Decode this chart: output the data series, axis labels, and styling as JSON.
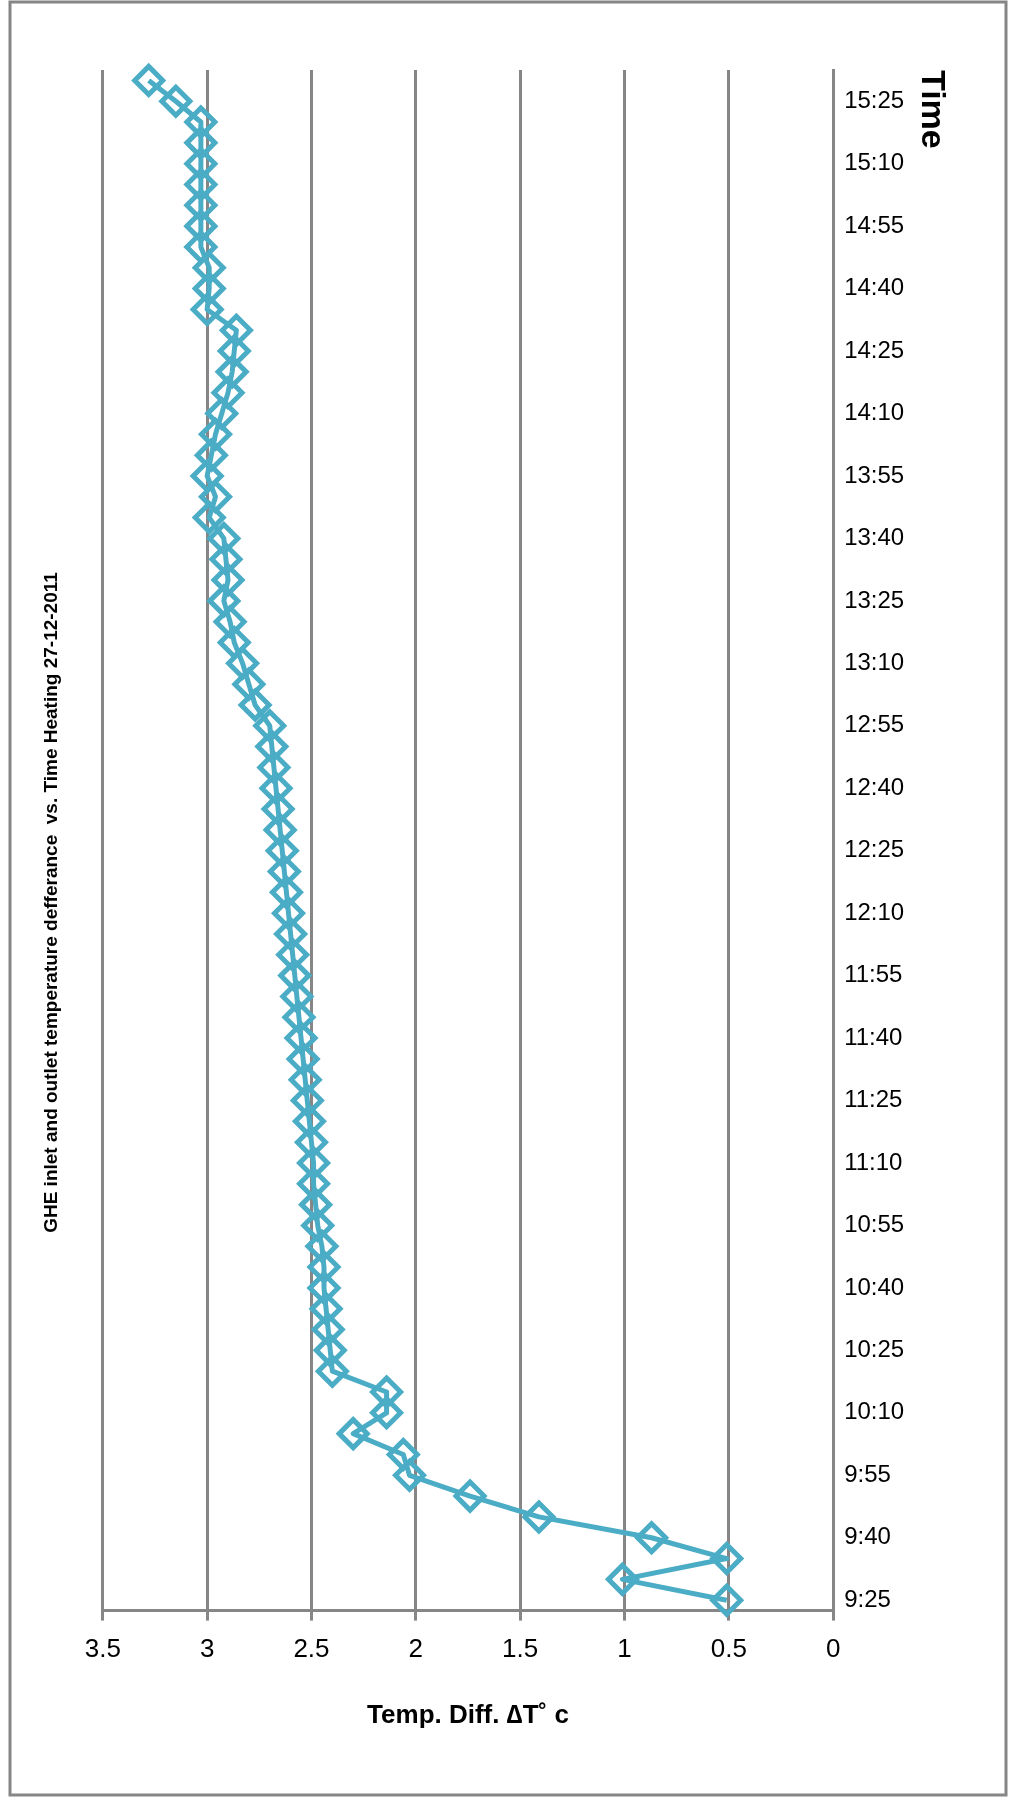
{
  "chart_data": {
    "type": "line",
    "orientation": "horizontal",
    "title": "GHE inlet and outlet temperature defferance  vs. Time Heating 27-12-2011",
    "xlabel": "Temp. Diff. ∆T˚ c",
    "ylabel": "Time",
    "categories": [
      null,
      "15:25",
      null,
      null,
      "15:10",
      null,
      null,
      "14:55",
      null,
      null,
      "14:40",
      null,
      null,
      "14:25",
      null,
      null,
      "14:10",
      null,
      null,
      "13:55",
      null,
      null,
      "13:40",
      null,
      null,
      "13:25",
      null,
      null,
      "13:10",
      null,
      null,
      "12:55",
      null,
      null,
      "12:40",
      null,
      null,
      "12:25",
      null,
      null,
      "12:10",
      null,
      null,
      "11:55",
      null,
      null,
      "11:40",
      null,
      null,
      "11:25",
      null,
      null,
      "11:10",
      null,
      null,
      "10:55",
      null,
      null,
      "10:40",
      null,
      null,
      "10:25",
      null,
      null,
      "10:10",
      null,
      null,
      "9:55",
      null,
      null,
      "9:40",
      null,
      null,
      "9:25"
    ],
    "series": [
      {
        "color": "#4bacc6",
        "values": [
          3.28,
          3.15,
          3.03,
          3.03,
          3.03,
          3.03,
          3.03,
          3.03,
          3.03,
          2.99,
          2.99,
          3.0,
          2.86,
          2.87,
          2.88,
          2.9,
          2.93,
          2.96,
          2.98,
          3.0,
          2.96,
          2.99,
          2.92,
          2.91,
          2.9,
          2.92,
          2.89,
          2.87,
          2.83,
          2.8,
          2.77,
          2.7,
          2.69,
          2.68,
          2.67,
          2.66,
          2.65,
          2.64,
          2.63,
          2.62,
          2.61,
          2.6,
          2.59,
          2.58,
          2.57,
          2.56,
          2.55,
          2.54,
          2.53,
          2.52,
          2.51,
          2.5,
          2.49,
          2.49,
          2.48,
          2.47,
          2.45,
          2.44,
          2.44,
          2.43,
          2.42,
          2.41,
          2.4,
          2.14,
          2.14,
          2.3,
          2.06,
          2.03,
          1.74,
          1.41,
          0.87,
          0.51,
          1.01,
          0.51
        ]
      }
    ],
    "xlim": [
      3.5,
      0
    ],
    "xticks": [
      3.5,
      3,
      2.5,
      2,
      1.5,
      1,
      0.5,
      0
    ],
    "grid": "x",
    "marker": "diamond"
  }
}
